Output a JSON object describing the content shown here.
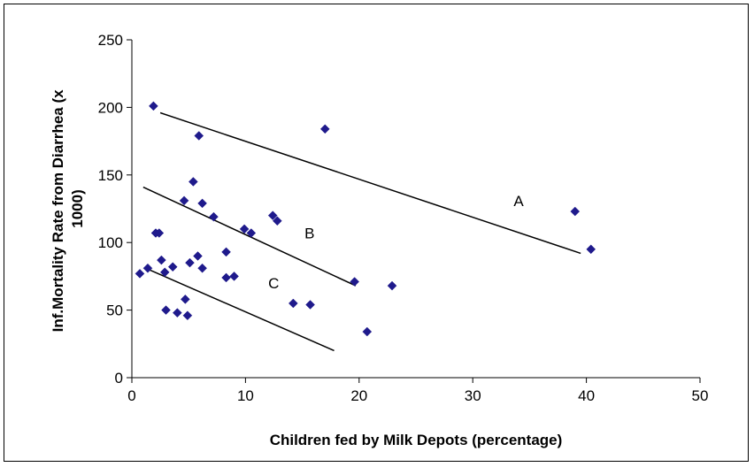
{
  "chart_data": {
    "type": "scatter",
    "title": "",
    "xlabel": "Children fed by Milk Depots (percentage)",
    "ylabel_line1": "Inf.Mortality Rate from Diarrhea (x",
    "ylabel_line2": "1000)",
    "xlim": [
      0,
      50
    ],
    "ylim": [
      0,
      250
    ],
    "xticks": [
      0,
      10,
      20,
      30,
      40,
      50
    ],
    "yticks": [
      0,
      50,
      100,
      150,
      200,
      250
    ],
    "grid": false,
    "legend": "none",
    "marker_color": "#1f1a8c",
    "line_color": "#000000",
    "points": [
      {
        "x": 1.9,
        "y": 201
      },
      {
        "x": 5.9,
        "y": 179
      },
      {
        "x": 17.0,
        "y": 184
      },
      {
        "x": 5.4,
        "y": 145
      },
      {
        "x": 4.6,
        "y": 131
      },
      {
        "x": 6.2,
        "y": 129
      },
      {
        "x": 7.2,
        "y": 119
      },
      {
        "x": 12.4,
        "y": 120
      },
      {
        "x": 12.8,
        "y": 116
      },
      {
        "x": 9.9,
        "y": 110
      },
      {
        "x": 10.5,
        "y": 107
      },
      {
        "x": 2.1,
        "y": 107
      },
      {
        "x": 2.4,
        "y": 107
      },
      {
        "x": 8.3,
        "y": 93
      },
      {
        "x": 5.8,
        "y": 90
      },
      {
        "x": 2.6,
        "y": 87
      },
      {
        "x": 5.1,
        "y": 85
      },
      {
        "x": 6.2,
        "y": 81
      },
      {
        "x": 3.6,
        "y": 82
      },
      {
        "x": 1.4,
        "y": 81
      },
      {
        "x": 0.7,
        "y": 77
      },
      {
        "x": 2.9,
        "y": 78
      },
      {
        "x": 8.3,
        "y": 74
      },
      {
        "x": 9.0,
        "y": 75
      },
      {
        "x": 19.6,
        "y": 71
      },
      {
        "x": 22.9,
        "y": 68
      },
      {
        "x": 4.7,
        "y": 58
      },
      {
        "x": 14.2,
        "y": 55
      },
      {
        "x": 15.7,
        "y": 54
      },
      {
        "x": 3.0,
        "y": 50
      },
      {
        "x": 4.0,
        "y": 48
      },
      {
        "x": 4.9,
        "y": 46
      },
      {
        "x": 20.7,
        "y": 34
      },
      {
        "x": 39.0,
        "y": 123
      },
      {
        "x": 40.4,
        "y": 95
      }
    ],
    "trend_lines": [
      {
        "label": "A",
        "x1": 2.5,
        "y1": 196,
        "x2": 39.5,
        "y2": 92,
        "label_x": 33.6,
        "label_y": 127
      },
      {
        "label": "B",
        "x1": 1.0,
        "y1": 141,
        "x2": 19.7,
        "y2": 68,
        "label_x": 15.2,
        "label_y": 103
      },
      {
        "label": "C",
        "x1": 1.5,
        "y1": 80,
        "x2": 17.8,
        "y2": 20,
        "label_x": 12.0,
        "label_y": 66
      }
    ]
  }
}
